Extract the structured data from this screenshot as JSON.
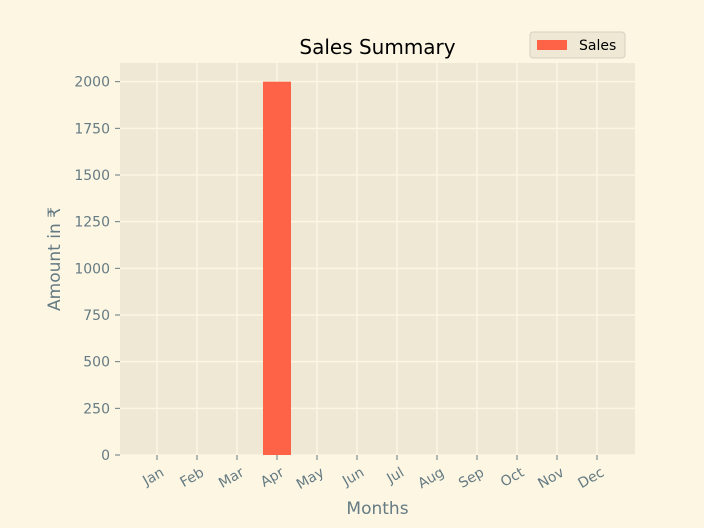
{
  "chart_data": {
    "type": "bar",
    "title": "Sales Summary",
    "xlabel": "Months",
    "ylabel": "Amount in ₹",
    "categories": [
      "Jan",
      "Feb",
      "Mar",
      "Apr",
      "May",
      "Jun",
      "Jul",
      "Aug",
      "Sep",
      "Oct",
      "Nov",
      "Dec"
    ],
    "series": [
      {
        "name": "Sales",
        "values": [
          0,
          0,
          0,
          2000,
          0,
          0,
          0,
          0,
          0,
          0,
          0,
          0
        ],
        "color": "#ff6347"
      }
    ],
    "ylim": [
      0,
      2100
    ],
    "yticks": [
      0,
      250,
      500,
      750,
      1000,
      1250,
      1500,
      1750,
      2000
    ],
    "grid": true,
    "legend_position": "top-right",
    "colors": {
      "background": "#fdf6e3",
      "plot_background": "#eee8d5",
      "grid": "#fdf6e3",
      "text": "#657b83"
    }
  }
}
